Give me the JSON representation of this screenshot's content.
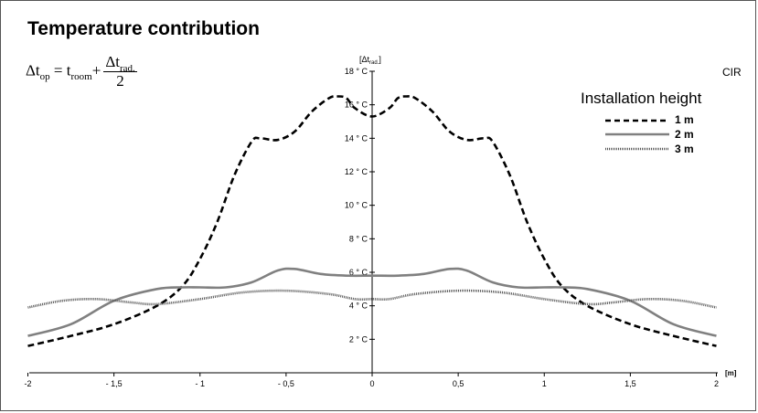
{
  "title": "Temperature contribution",
  "formula": {
    "lhs": "Δt",
    "lhs_sub": "op",
    "equals": "=",
    "term": "t",
    "term_sub": "room",
    "plus": "+",
    "num": "Δt",
    "num_sub": "rad.",
    "den": "2"
  },
  "brand": "CIR",
  "legend": {
    "title": "Installation height",
    "items": [
      {
        "label": "1 m",
        "style": "dashed"
      },
      {
        "label": "2 m",
        "style": "solid"
      },
      {
        "label": "3 m",
        "style": "dotted"
      }
    ]
  },
  "chart_data": {
    "type": "line",
    "y_axis_label": "[Δt",
    "y_axis_label_sub": "rad.",
    "y_axis_label_end": "]",
    "x_axis_label": "[m]",
    "xlim": [
      -2,
      2
    ],
    "ylim": [
      0,
      18
    ],
    "x_ticks": [
      -2,
      -1.5,
      -1,
      -0.5,
      0,
      0.5,
      1,
      1.5,
      2
    ],
    "x_tick_labels": [
      "-2",
      "- 1,5",
      "- 1",
      "- 0,5",
      "0",
      "0,5",
      "1",
      "1,5",
      "2"
    ],
    "y_ticks": [
      2,
      4,
      6,
      8,
      10,
      12,
      14,
      16,
      18
    ],
    "y_tick_labels": [
      "2 ° C",
      "4 ° C",
      "6 ° C",
      "8 ° C",
      "10 ° C",
      "12 ° C",
      "14 ° C",
      "16 ° C",
      "18 ° C"
    ],
    "series": [
      {
        "name": "1 m",
        "style": "dashed",
        "color": "#000000",
        "x": [
          -2,
          -1.75,
          -1.5,
          -1.25,
          -1.1,
          -1.0,
          -0.9,
          -0.8,
          -0.7,
          -0.65,
          -0.55,
          -0.45,
          -0.35,
          -0.25,
          -0.2,
          -0.15,
          -0.1,
          0,
          0.1,
          0.15,
          0.2,
          0.25,
          0.35,
          0.45,
          0.55,
          0.65,
          0.7,
          0.8,
          0.9,
          1.0,
          1.1,
          1.25,
          1.5,
          1.75,
          2
        ],
        "y": [
          1.6,
          2.2,
          2.9,
          4.0,
          5.2,
          6.8,
          9.0,
          11.8,
          13.8,
          14.0,
          13.9,
          14.4,
          15.6,
          16.4,
          16.5,
          16.4,
          15.8,
          15.3,
          15.8,
          16.4,
          16.5,
          16.4,
          15.6,
          14.4,
          13.9,
          14.0,
          13.8,
          11.8,
          9.0,
          6.8,
          5.2,
          4.0,
          2.9,
          2.2,
          1.6
        ]
      },
      {
        "name": "2 m",
        "style": "solid",
        "color": "#808080",
        "x": [
          -2,
          -1.75,
          -1.5,
          -1.25,
          -1.1,
          -1.0,
          -0.85,
          -0.7,
          -0.55,
          -0.45,
          -0.3,
          -0.15,
          0,
          0.15,
          0.3,
          0.45,
          0.55,
          0.7,
          0.85,
          1.0,
          1.1,
          1.25,
          1.5,
          1.75,
          2
        ],
        "y": [
          2.2,
          2.9,
          4.3,
          5.0,
          5.1,
          5.1,
          5.1,
          5.4,
          6.1,
          6.2,
          5.9,
          5.8,
          5.8,
          5.8,
          5.9,
          6.2,
          6.1,
          5.4,
          5.1,
          5.1,
          5.1,
          5.0,
          4.3,
          2.9,
          2.2
        ]
      },
      {
        "name": "3 m",
        "style": "dotted",
        "color": "#555555",
        "x": [
          -2,
          -1.8,
          -1.6,
          -1.4,
          -1.25,
          -1.0,
          -0.75,
          -0.5,
          -0.25,
          -0.1,
          0,
          0.1,
          0.25,
          0.5,
          0.75,
          1.0,
          1.25,
          1.4,
          1.6,
          1.8,
          2
        ],
        "y": [
          3.9,
          4.3,
          4.4,
          4.2,
          4.1,
          4.4,
          4.8,
          4.9,
          4.7,
          4.4,
          4.4,
          4.4,
          4.7,
          4.9,
          4.8,
          4.4,
          4.1,
          4.2,
          4.4,
          4.3,
          3.9
        ]
      }
    ]
  }
}
